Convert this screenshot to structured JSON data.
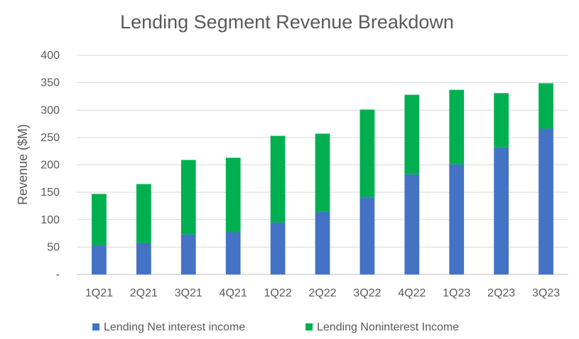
{
  "chart_data": {
    "type": "bar",
    "stacked": true,
    "title": "Lending Segment Revenue Breakdown",
    "xlabel": "",
    "ylabel": "Revenue ($M)",
    "ylim": [
      0,
      400
    ],
    "yticks": [
      "-",
      "50",
      "100",
      "150",
      "200",
      "250",
      "300",
      "350",
      "400"
    ],
    "grid": true,
    "legend_position": "bottom",
    "categories": [
      "1Q21",
      "2Q21",
      "3Q21",
      "4Q21",
      "1Q22",
      "2Q22",
      "3Q22",
      "4Q22",
      "1Q23",
      "2Q23",
      "3Q23"
    ],
    "series": [
      {
        "name": "Lending Net interest income",
        "color": "#4472C4",
        "values": [
          53,
          57,
          73,
          77,
          95,
          114,
          141,
          183,
          201,
          232,
          266
        ]
      },
      {
        "name": "Lending Noninterest Income",
        "color": "#00B050",
        "values": [
          94,
          108,
          136,
          136,
          158,
          143,
          160,
          145,
          136,
          99,
          83
        ]
      }
    ]
  }
}
